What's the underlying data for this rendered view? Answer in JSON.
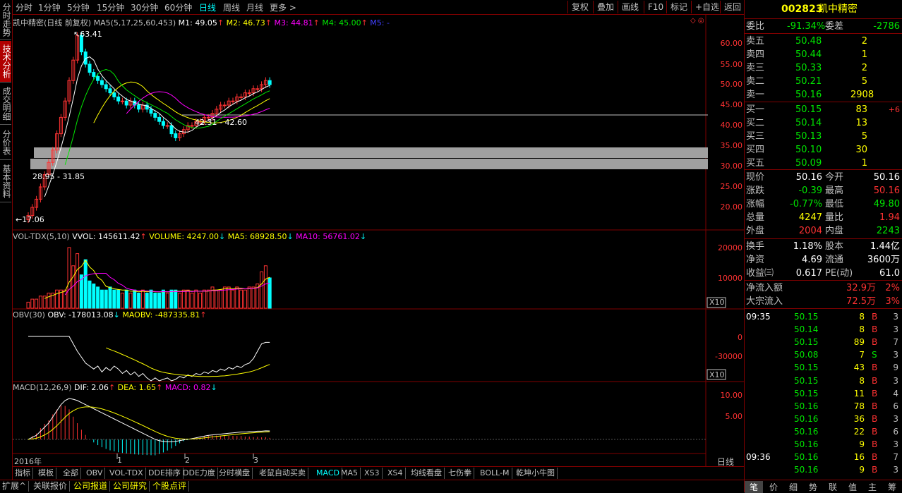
{
  "left_tabs": [
    "分时走势",
    "技术分析",
    "成交明细",
    "分价表",
    "基本资料"
  ],
  "period_bar": {
    "periods": [
      "分时",
      "1分钟",
      "5分钟",
      "15分钟",
      "30分钟",
      "60分钟",
      "日线",
      "周线",
      "月线",
      "更多 >"
    ],
    "active": "日线",
    "buttons": [
      "复权",
      "叠加",
      "画线",
      "F10",
      "标记",
      "+自选",
      "返回"
    ]
  },
  "main_chart": {
    "label_name": "凯中精密(日线 前复权)",
    "ma_label": "MA5(5,17,25,60,453)",
    "m1": "M1: 49.05",
    "m2": "M2: 46.73",
    "m3": "M3: 44.81",
    "m4": "M4: 45.00",
    "m5": "M5: -",
    "high_mark": "63.41",
    "low_mark": "17.06",
    "range_upper": "42.31 - 42.60",
    "range_lower": "28.95 - 31.85",
    "yticks": [
      "60.00",
      "55.00",
      "50.00",
      "45.00",
      "40.00",
      "35.00",
      "30.00",
      "25.00",
      "20.00"
    ]
  },
  "vol_chart": {
    "name": "VOL-TDX(5,10)",
    "vvol": "VVOL: 145611.42",
    "volume": "VOLUME: 4247.00",
    "ma5": "MA5: 68928.50",
    "ma10": "MA10: 56761.02",
    "yticks": [
      "20000",
      "10000"
    ],
    "scale": "X10"
  },
  "obv_chart": {
    "name": "OBV(30)",
    "obv": "OBV: -178013.08",
    "maobv": "MAOBV: -487335.81",
    "yticks": [
      "0",
      "-30000"
    ],
    "scale": "X10"
  },
  "macd_chart": {
    "name": "MACD(12,26,9)",
    "dif": "DIF: 2.06",
    "dea": "DEA: 1.65",
    "macd": "MACD: 0.82",
    "yticks": [
      "10.00",
      "5.00"
    ],
    "x_labels": [
      "2016年",
      "1",
      "2",
      "3"
    ],
    "period": "日线"
  },
  "bottom_tabs": [
    "指标",
    "模板",
    "全部",
    "OBV",
    "VOL-TDX",
    "DDE排序",
    "DDE力度",
    "分时横盘",
    "老鼠自动买卖",
    "MACD",
    "MA5",
    "XS3",
    "XS4",
    "均线看盘",
    "七伤拳",
    "BOLL-M",
    "乾坤小牛图"
  ],
  "bottom_active": "MACD",
  "status_tabs": [
    "扩展^",
    "关联报价",
    "公司报道",
    "公司研究",
    "个股点评"
  ],
  "stock": {
    "code": "002823",
    "name": "凯中精密",
    "weibi_label": "委比",
    "weibi": "-91.34%",
    "weicha_label": "委差",
    "weicha": "-2786",
    "asks": [
      {
        "label": "卖五",
        "price": "50.48",
        "vol": "2"
      },
      {
        "label": "卖四",
        "price": "50.44",
        "vol": "1"
      },
      {
        "label": "卖三",
        "price": "50.33",
        "vol": "2"
      },
      {
        "label": "卖二",
        "price": "50.21",
        "vol": "5"
      },
      {
        "label": "卖一",
        "price": "50.16",
        "vol": "2908"
      }
    ],
    "bids": [
      {
        "label": "买一",
        "price": "50.15",
        "vol": "83",
        "chg": "+6"
      },
      {
        "label": "买二",
        "price": "50.14",
        "vol": "13",
        "chg": ""
      },
      {
        "label": "买三",
        "price": "50.13",
        "vol": "5",
        "chg": ""
      },
      {
        "label": "买四",
        "price": "50.10",
        "vol": "30",
        "chg": ""
      },
      {
        "label": "买五",
        "price": "50.09",
        "vol": "1",
        "chg": ""
      }
    ],
    "quote": [
      {
        "l1": "现价",
        "v1": "50.16",
        "l2": "今开",
        "v2": "50.16"
      },
      {
        "l1": "涨跌",
        "v1": "-0.39",
        "l2": "最高",
        "v2": "50.16"
      },
      {
        "l1": "涨幅",
        "v1": "-0.77%",
        "l2": "最低",
        "v2": "49.80"
      },
      {
        "l1": "总量",
        "v1": "4247",
        "l2": "量比",
        "v2": "1.94"
      },
      {
        "l1": "外盘",
        "v1": "2004",
        "l2": "内盘",
        "v2": "2243"
      }
    ],
    "fund": [
      {
        "l1": "换手",
        "v1": "1.18%",
        "l2": "股本",
        "v2": "1.44亿"
      },
      {
        "l1": "净资",
        "v1": "4.69",
        "l2": "流通",
        "v2": "3600万"
      },
      {
        "l1": "收益㈢",
        "v1": "0.617",
        "l2": "PE(动)",
        "v2": "61.0"
      }
    ],
    "flow": [
      {
        "label": "净流入额",
        "value": "32.9万",
        "pct": "2%"
      },
      {
        "label": "大宗流入",
        "value": "72.5万",
        "pct": "3%"
      }
    ]
  },
  "ticks": [
    {
      "time": "09:35",
      "price": "50.15",
      "vol": "8",
      "side": "B",
      "n": "3"
    },
    {
      "time": "",
      "price": "50.14",
      "vol": "8",
      "side": "B",
      "n": "3"
    },
    {
      "time": "",
      "price": "50.15",
      "vol": "89",
      "side": "B",
      "n": "7"
    },
    {
      "time": "",
      "price": "50.08",
      "vol": "7",
      "side": "S",
      "n": "3"
    },
    {
      "time": "",
      "price": "50.15",
      "vol": "43",
      "side": "B",
      "n": "9"
    },
    {
      "time": "",
      "price": "50.15",
      "vol": "8",
      "side": "B",
      "n": "3"
    },
    {
      "time": "",
      "price": "50.15",
      "vol": "11",
      "side": "B",
      "n": "4"
    },
    {
      "time": "",
      "price": "50.16",
      "vol": "78",
      "side": "B",
      "n": "6"
    },
    {
      "time": "",
      "price": "50.16",
      "vol": "36",
      "side": "B",
      "n": "3"
    },
    {
      "time": "",
      "price": "50.16",
      "vol": "22",
      "side": "B",
      "n": "6"
    },
    {
      "time": "",
      "price": "50.16",
      "vol": "9",
      "side": "B",
      "n": "3"
    },
    {
      "time": "09:36",
      "price": "50.16",
      "vol": "16",
      "side": "B",
      "n": "7"
    },
    {
      "time": "",
      "price": "50.16",
      "vol": "9",
      "side": "B",
      "n": "3"
    }
  ],
  "rp_tabs": [
    "笔",
    "价",
    "细",
    "势",
    "联",
    "值",
    "主",
    "筹"
  ],
  "rp_active": "笔"
}
